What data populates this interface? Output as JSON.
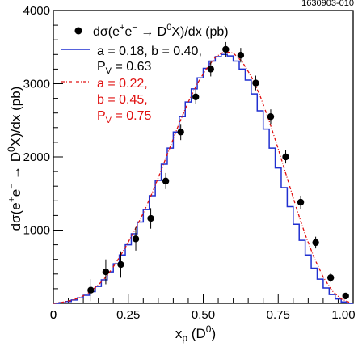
{
  "figure_id": "1630903-010",
  "chart_data": {
    "type": "line",
    "xlabel": "x",
    "xlabel_sub": "p",
    "xlabel_paren": "(D",
    "xlabel_sup": "0",
    "xlabel_close": ")",
    "ylabel_pre": "dσ(e",
    "ylabel_sup1": "+",
    "ylabel_mid": "e",
    "ylabel_sup2": "−",
    "ylabel_arrow": " → D",
    "ylabel_sup3": "0",
    "ylabel_post": "X)/dx (pb)",
    "xlim": [
      0,
      1.0
    ],
    "ylim": [
      0,
      4000
    ],
    "x_ticks": [
      0,
      0.25,
      0.5,
      0.75,
      1.0
    ],
    "x_tick_labels": [
      "0",
      "0.25",
      "0.50",
      "0.75",
      "1.00"
    ],
    "y_ticks": [
      1000,
      2000,
      3000,
      4000
    ],
    "y_tick_labels": [
      "1000",
      "2000",
      "3000",
      "4000"
    ],
    "grid": false,
    "legend_position": "top-left",
    "legend": {
      "data_pre": "dσ(e",
      "data_sup1": "+",
      "data_mid": "e",
      "data_sup2": "−",
      "data_arrow": "→ D",
      "data_sup3": "0",
      "data_post": "X)/dx (pb)",
      "blue_line1": "a = 0.18, b = 0.40,",
      "blue_line2_pre": "P",
      "blue_line2_sub": "V",
      "blue_line2_post": " = 0.63",
      "red_line1": "a = 0.22,",
      "red_line2": "b = 0.45,",
      "red_line3_pre": "P",
      "red_line3_sub": "V",
      "red_line3_post": " = 0.75"
    },
    "colors": {
      "data": "#000000",
      "model_a": "#1f2fd0",
      "model_b": "#e01010"
    },
    "data_points": {
      "x": [
        0.125,
        0.175,
        0.225,
        0.275,
        0.325,
        0.375,
        0.425,
        0.475,
        0.525,
        0.575,
        0.625,
        0.675,
        0.725,
        0.775,
        0.825,
        0.875,
        0.925,
        0.975
      ],
      "y": [
        180,
        430,
        530,
        880,
        1160,
        1670,
        2340,
        2820,
        3200,
        3470,
        3390,
        3010,
        2550,
        2000,
        1380,
        830,
        350,
        100
      ],
      "yerr": [
        150,
        170,
        180,
        160,
        140,
        110,
        110,
        100,
        100,
        100,
        100,
        100,
        100,
        90,
        90,
        80,
        60,
        40
      ]
    },
    "series": [
      {
        "name": "a = 0.18, b = 0.40, PV = 0.63",
        "style": "step",
        "x": [
          0,
          0.02,
          0.04,
          0.06,
          0.08,
          0.1,
          0.12,
          0.14,
          0.16,
          0.18,
          0.2,
          0.22,
          0.24,
          0.26,
          0.28,
          0.3,
          0.32,
          0.34,
          0.36,
          0.38,
          0.4,
          0.42,
          0.44,
          0.46,
          0.48,
          0.5,
          0.52,
          0.54,
          0.56,
          0.58,
          0.6,
          0.62,
          0.64,
          0.66,
          0.68,
          0.7,
          0.72,
          0.74,
          0.76,
          0.78,
          0.8,
          0.82,
          0.84,
          0.86,
          0.88,
          0.9,
          0.92,
          0.94,
          0.96,
          0.98
        ],
        "y": [
          0,
          10,
          25,
          45,
          75,
          110,
          160,
          230,
          320,
          430,
          540,
          660,
          800,
          950,
          1110,
          1280,
          1470,
          1680,
          1900,
          2120,
          2340,
          2550,
          2750,
          2930,
          3080,
          3210,
          3310,
          3370,
          3400,
          3380,
          3310,
          3200,
          3050,
          2860,
          2630,
          2380,
          2120,
          1850,
          1580,
          1320,
          1080,
          860,
          660,
          480,
          330,
          210,
          120,
          60,
          20,
          0
        ]
      },
      {
        "name": "a = 0.22, b = 0.45, PV = 0.75",
        "style": "dash-dot",
        "x": [
          0,
          0.03,
          0.06,
          0.09,
          0.12,
          0.15,
          0.18,
          0.21,
          0.24,
          0.27,
          0.3,
          0.33,
          0.36,
          0.39,
          0.42,
          0.45,
          0.48,
          0.51,
          0.54,
          0.57,
          0.6,
          0.63,
          0.66,
          0.69,
          0.72,
          0.75,
          0.78,
          0.81,
          0.84,
          0.87,
          0.9,
          0.93,
          0.96,
          0.99
        ],
        "y": [
          0,
          15,
          40,
          80,
          150,
          250,
          380,
          560,
          760,
          990,
          1230,
          1510,
          1820,
          2140,
          2460,
          2750,
          3000,
          3200,
          3360,
          3440,
          3420,
          3300,
          3100,
          2830,
          2490,
          2110,
          1710,
          1310,
          940,
          620,
          360,
          170,
          60,
          10
        ]
      }
    ]
  }
}
